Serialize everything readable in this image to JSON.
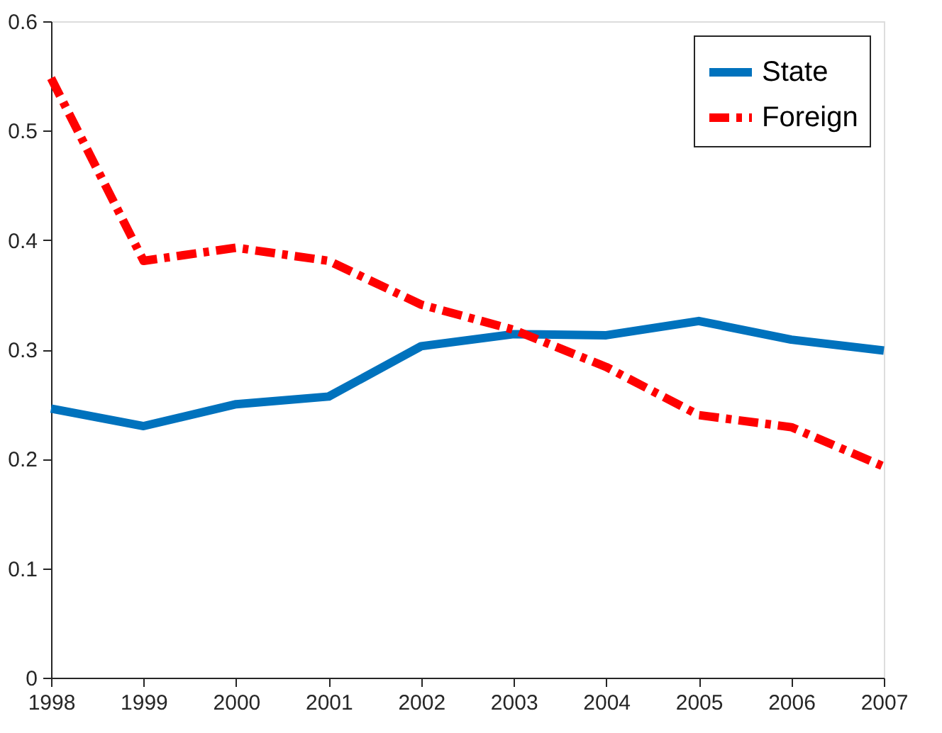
{
  "chart_data": {
    "type": "line",
    "x": [
      1998,
      1999,
      2000,
      2001,
      2002,
      2003,
      2004,
      2005,
      2006,
      2007
    ],
    "series": [
      {
        "name": "State",
        "color": "#0072bd",
        "line_style": "solid",
        "values": [
          0.246,
          0.23,
          0.25,
          0.257,
          0.303,
          0.314,
          0.313,
          0.326,
          0.309,
          0.299
        ]
      },
      {
        "name": "Foreign",
        "color": "#ff0000",
        "line_style": "dashed",
        "values": [
          0.548,
          0.381,
          0.393,
          0.381,
          0.341,
          0.318,
          0.284,
          0.24,
          0.229,
          0.193
        ]
      }
    ],
    "xlim": [
      1998,
      2007
    ],
    "xticks": [
      1998,
      1999,
      2000,
      2001,
      2002,
      2003,
      2004,
      2005,
      2006,
      2007
    ],
    "ylim": [
      0,
      0.6
    ],
    "yticks": [
      0,
      0.1,
      0.2,
      0.3,
      0.4,
      0.5,
      0.6
    ],
    "grid": false,
    "legend": "top right",
    "marker": "none"
  }
}
